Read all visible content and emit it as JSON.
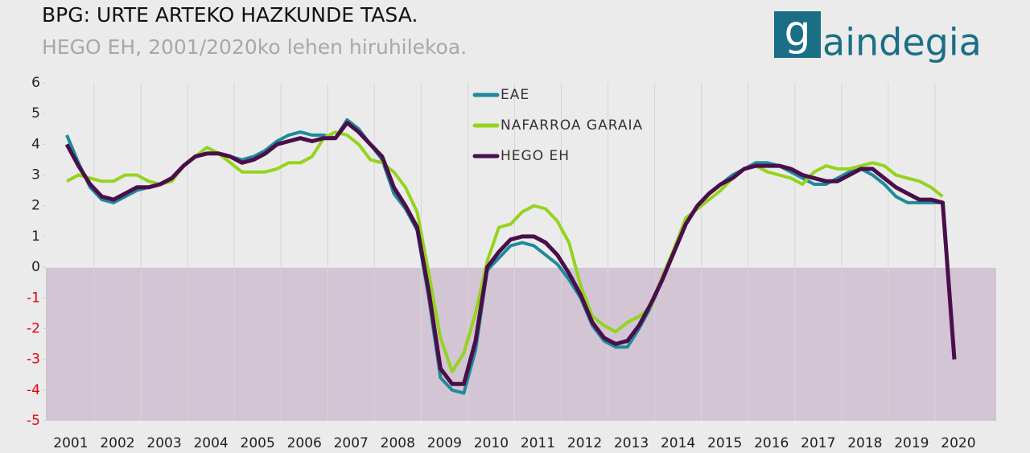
{
  "chart_data": {
    "type": "line",
    "title": "BPG: URTE ARTEKO HAZKUNDE TASA.",
    "subtitle": "HEGO EH, 2001/2020ko lehen hiruhilekoa.",
    "logo": {
      "mark": "g",
      "text": "aindegia"
    },
    "categories": [
      "2001",
      null,
      null,
      null,
      "2002",
      null,
      null,
      null,
      "2003",
      null,
      null,
      null,
      "2004",
      null,
      null,
      null,
      "2005",
      null,
      null,
      null,
      "2006",
      null,
      null,
      null,
      "2007",
      null,
      null,
      null,
      "2008",
      null,
      null,
      null,
      "2009",
      null,
      null,
      null,
      "2010",
      null,
      null,
      null,
      "2011",
      null,
      null,
      null,
      "2012",
      null,
      null,
      null,
      "2013",
      null,
      null,
      null,
      "2014",
      null,
      null,
      null,
      "2015",
      null,
      null,
      null,
      "2016",
      null,
      null,
      null,
      "2017",
      null,
      null,
      null,
      "2018",
      null,
      null,
      null,
      "2019",
      null,
      null,
      null,
      "2020"
    ],
    "ylim": [
      -5,
      6
    ],
    "yticks": [
      -5,
      -4,
      -3,
      -2,
      -1,
      0,
      1,
      2,
      3,
      4,
      5,
      6
    ],
    "negative_tick_color": "#e8000b",
    "negative_fill": "#d3c5d3",
    "legend": "top",
    "series": [
      {
        "name": "EAE",
        "color": "#1f8a9a",
        "values": [
          4.3,
          3.4,
          2.6,
          2.2,
          2.1,
          2.3,
          2.5,
          2.6,
          2.7,
          2.9,
          3.3,
          3.6,
          3.7,
          3.7,
          3.6,
          3.5,
          3.6,
          3.8,
          4.1,
          4.3,
          4.4,
          4.3,
          4.3,
          4.2,
          4.8,
          4.5,
          4.0,
          3.5,
          2.4,
          1.9,
          1.2,
          -1.0,
          -3.6,
          -4.0,
          -4.1,
          -2.7,
          -0.1,
          0.3,
          0.7,
          0.8,
          0.7,
          0.4,
          0.1,
          -0.4,
          -1.0,
          -1.9,
          -2.4,
          -2.6,
          -2.6,
          -2.0,
          -1.3,
          -0.4,
          0.5,
          1.4,
          2.0,
          2.4,
          2.7,
          3.0,
          3.2,
          3.4,
          3.4,
          3.3,
          3.1,
          2.9,
          2.7,
          2.7,
          2.9,
          3.1,
          3.2,
          3.0,
          2.7,
          2.3,
          2.1,
          2.1,
          2.1,
          2.1,
          -3.0
        ]
      },
      {
        "name": "NAFARROA GARAIA",
        "color": "#95d31e",
        "values": [
          2.8,
          3.0,
          2.9,
          2.8,
          2.8,
          3.0,
          3.0,
          2.8,
          2.7,
          2.8,
          3.3,
          3.6,
          3.9,
          3.7,
          3.4,
          3.1,
          3.1,
          3.1,
          3.2,
          3.4,
          3.4,
          3.6,
          4.2,
          4.4,
          4.3,
          4.0,
          3.5,
          3.4,
          3.1,
          2.6,
          1.8,
          -0.2,
          -2.3,
          -3.4,
          -2.8,
          -1.5,
          0.2,
          1.3,
          1.4,
          1.8,
          2.0,
          1.9,
          1.5,
          0.8,
          -0.6,
          -1.6,
          -1.9,
          -2.1,
          -1.8,
          -1.6,
          -1.3,
          -0.3,
          0.6,
          1.6,
          1.9,
          2.2,
          2.5,
          2.9,
          3.2,
          3.3,
          3.1,
          3.0,
          2.9,
          2.7,
          3.1,
          3.3,
          3.2,
          3.2,
          3.3,
          3.4,
          3.3,
          3.0,
          2.9,
          2.8,
          2.6,
          2.3,
          null
        ]
      },
      {
        "name": "HEGO EH",
        "color": "#4a0f4a",
        "values": [
          4.0,
          3.3,
          2.7,
          2.3,
          2.2,
          2.4,
          2.6,
          2.6,
          2.7,
          2.9,
          3.3,
          3.6,
          3.7,
          3.7,
          3.6,
          3.4,
          3.5,
          3.7,
          4.0,
          4.1,
          4.2,
          4.1,
          4.2,
          4.2,
          4.7,
          4.4,
          4.0,
          3.6,
          2.6,
          2.0,
          1.3,
          -0.8,
          -3.3,
          -3.8,
          -3.8,
          -2.4,
          0.0,
          0.5,
          0.9,
          1.0,
          1.0,
          0.8,
          0.4,
          -0.2,
          -0.9,
          -1.8,
          -2.3,
          -2.5,
          -2.4,
          -1.9,
          -1.2,
          -0.4,
          0.5,
          1.4,
          2.0,
          2.4,
          2.7,
          2.9,
          3.2,
          3.3,
          3.3,
          3.3,
          3.2,
          3.0,
          2.9,
          2.8,
          2.8,
          3.0,
          3.2,
          3.2,
          2.9,
          2.6,
          2.4,
          2.2,
          2.2,
          2.1,
          -3.0
        ]
      }
    ]
  }
}
